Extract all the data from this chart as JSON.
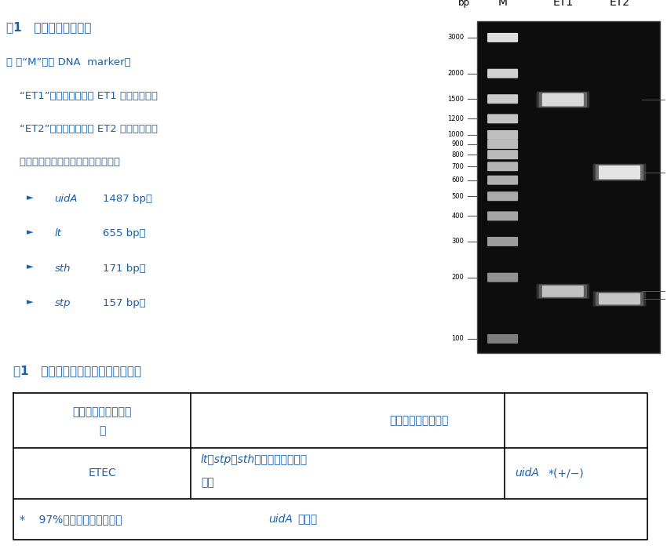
{
  "bg_color": "#ffffff",
  "text_color_blue": "#1a5fa8",
  "text_color_black": "#000000",
  "fig_title": "图1   阳性对照反应产物",
  "note_line0": "注 ：“M”表示 DNA  marker；",
  "note_line1": "    “ET1”表示冻干粉试剂 ET1 阳性对照结果",
  "note_line2": "    “ET2”表示冻干粉试剂 ET2 阳性对照结果",
  "note_line3": "    所涉及的基因扩增产物长度分别为：",
  "bullets": [
    [
      "uidA",
      "1487 bp；"
    ],
    [
      "lt",
      "655 bp；"
    ],
    [
      "sth",
      "171 bp；"
    ],
    [
      "stp",
      "157 bp。"
    ]
  ],
  "gel_bg": "#111111",
  "marker_bands": [
    3000,
    2000,
    1500,
    1200,
    1000,
    900,
    800,
    700,
    600,
    500,
    400,
    300,
    200,
    100
  ],
  "et1_bands": [
    1487,
    171
  ],
  "et2_bands": [
    655,
    157
  ],
  "table_title": "表1   反应产物目标条带与型别对照表",
  "bp_min": 85,
  "bp_max": 3600
}
